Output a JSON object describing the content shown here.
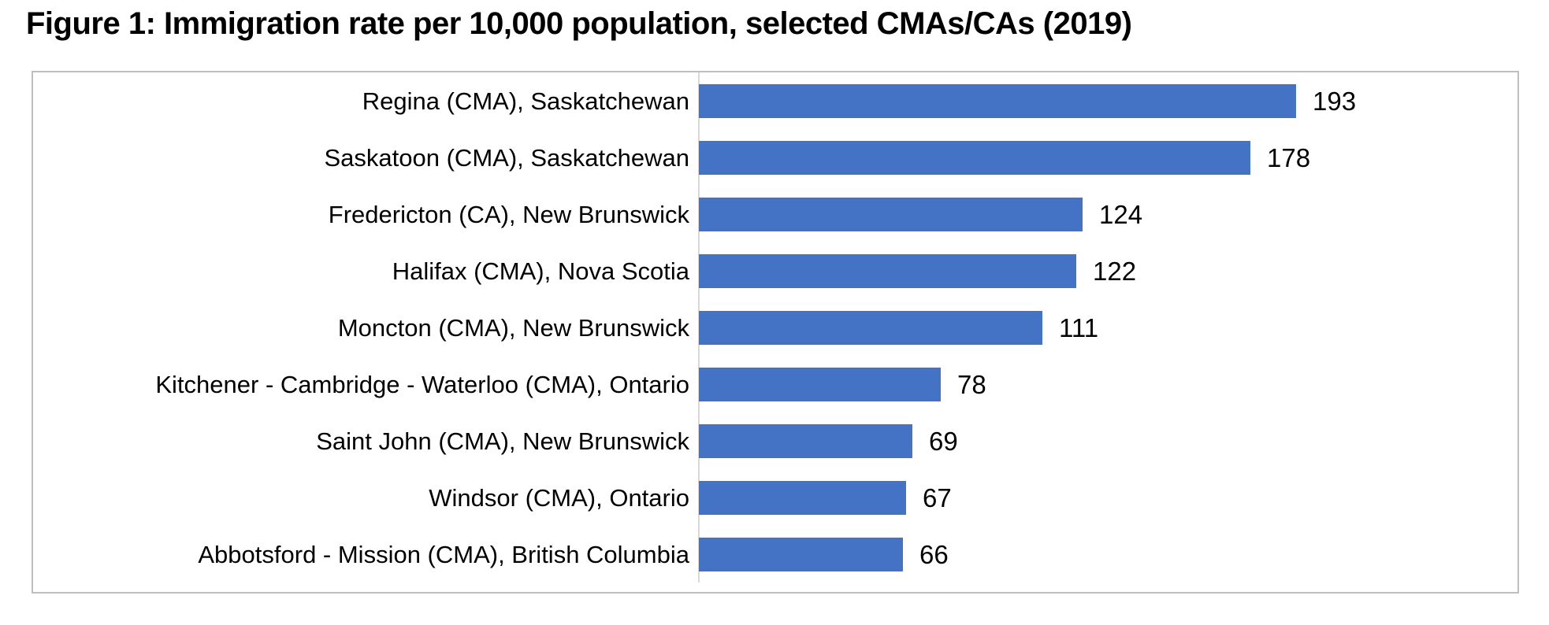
{
  "title": "Figure 1: Immigration rate per 10,000 population, selected CMAs/CAs (2019)",
  "chart_data": {
    "type": "bar",
    "orientation": "horizontal",
    "title": "Figure 1: Immigration rate per 10,000 population, selected CMAs/CAs (2019)",
    "categories": [
      "Regina (CMA), Saskatchewan",
      "Saskatoon (CMA), Saskatchewan",
      "Fredericton (CA), New Brunswick",
      "Halifax (CMA), Nova Scotia",
      "Moncton (CMA), New Brunswick",
      "Kitchener - Cambridge - Waterloo (CMA), Ontario",
      "Saint John (CMA), New Brunswick",
      "Windsor (CMA), Ontario",
      "Abbotsford - Mission (CMA), British Columbia"
    ],
    "values": [
      193,
      178,
      124,
      122,
      111,
      78,
      69,
      67,
      66
    ],
    "data_labels": [
      "193",
      "178",
      "124",
      "122",
      "111",
      "78",
      "69",
      "67",
      "66"
    ],
    "xlabel": "",
    "ylabel": "",
    "grid": false,
    "legend": false,
    "value_axis_visible": false,
    "bar_color": "#4472C4"
  },
  "colors": {
    "bar": "#4472C4",
    "chart_border": "#BFBFBF",
    "axis_line": "#D9D9D9",
    "text": "#000000",
    "background": "#FFFFFF"
  }
}
